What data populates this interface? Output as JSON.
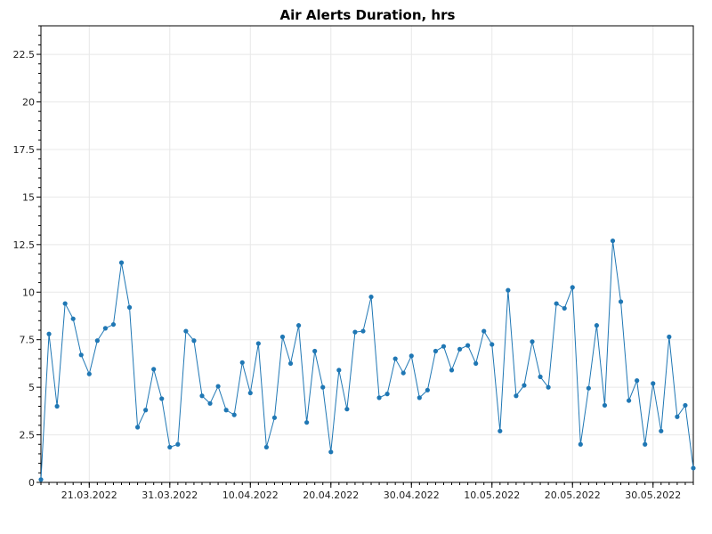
{
  "chart_data": {
    "type": "line",
    "title": "Air Alerts Duration, hrs",
    "xlabel": "",
    "ylabel": "",
    "x_start": "2022-03-15",
    "x_end": "2022-06-04",
    "ylim": [
      0,
      24
    ],
    "yticks": [
      "0",
      "2.5",
      "5",
      "7.5",
      "10",
      "12.5",
      "15",
      "17.5",
      "20",
      "22.5"
    ],
    "xticks": [
      {
        "date": "2022-03-21",
        "label": "21.03.2022"
      },
      {
        "date": "2022-03-31",
        "label": "31.03.2022"
      },
      {
        "date": "2022-04-10",
        "label": "10.04.2022"
      },
      {
        "date": "2022-04-20",
        "label": "20.04.2022"
      },
      {
        "date": "2022-04-30",
        "label": "30.04.2022"
      },
      {
        "date": "2022-05-10",
        "label": "10.05.2022"
      },
      {
        "date": "2022-05-20",
        "label": "20.05.2022"
      },
      {
        "date": "2022-05-30",
        "label": "30.05.2022"
      }
    ],
    "grid": true,
    "series": [
      {
        "color": "#1f77b4",
        "points": [
          [
            "2022-03-15",
            0.15
          ],
          [
            "2022-03-16",
            7.8
          ],
          [
            "2022-03-17",
            4.0
          ],
          [
            "2022-03-18",
            9.4
          ],
          [
            "2022-03-19",
            8.6
          ],
          [
            "2022-03-20",
            6.7
          ],
          [
            "2022-03-21",
            5.7
          ],
          [
            "2022-03-22",
            7.45
          ],
          [
            "2022-03-23",
            8.1
          ],
          [
            "2022-03-24",
            8.3
          ],
          [
            "2022-03-25",
            11.55
          ],
          [
            "2022-03-26",
            9.2
          ],
          [
            "2022-03-27",
            2.9
          ],
          [
            "2022-03-28",
            3.8
          ],
          [
            "2022-03-29",
            5.95
          ],
          [
            "2022-03-30",
            4.4
          ],
          [
            "2022-03-31",
            1.85
          ],
          [
            "2022-04-01",
            2.0
          ],
          [
            "2022-04-02",
            7.95
          ],
          [
            "2022-04-03",
            7.45
          ],
          [
            "2022-04-04",
            4.55
          ],
          [
            "2022-04-05",
            4.15
          ],
          [
            "2022-04-06",
            5.05
          ],
          [
            "2022-04-07",
            3.8
          ],
          [
            "2022-04-08",
            3.55
          ],
          [
            "2022-04-09",
            6.3
          ],
          [
            "2022-04-10",
            4.7
          ],
          [
            "2022-04-11",
            7.3
          ],
          [
            "2022-04-12",
            1.85
          ],
          [
            "2022-04-13",
            3.4
          ],
          [
            "2022-04-14",
            7.65
          ],
          [
            "2022-04-15",
            6.25
          ],
          [
            "2022-04-16",
            8.25
          ],
          [
            "2022-04-17",
            3.15
          ],
          [
            "2022-04-18",
            6.9
          ],
          [
            "2022-04-19",
            5.0
          ],
          [
            "2022-04-20",
            1.6
          ],
          [
            "2022-04-21",
            5.9
          ],
          [
            "2022-04-22",
            3.85
          ],
          [
            "2022-04-23",
            7.9
          ],
          [
            "2022-04-24",
            7.95
          ],
          [
            "2022-04-25",
            9.75
          ],
          [
            "2022-04-26",
            4.45
          ],
          [
            "2022-04-27",
            4.65
          ],
          [
            "2022-04-28",
            6.5
          ],
          [
            "2022-04-29",
            5.75
          ],
          [
            "2022-04-30",
            6.65
          ],
          [
            "2022-05-01",
            4.45
          ],
          [
            "2022-05-02",
            4.85
          ],
          [
            "2022-05-03",
            6.9
          ],
          [
            "2022-05-04",
            7.15
          ],
          [
            "2022-05-05",
            5.9
          ],
          [
            "2022-05-06",
            7.0
          ],
          [
            "2022-05-07",
            7.2
          ],
          [
            "2022-05-08",
            6.25
          ],
          [
            "2022-05-09",
            7.95
          ],
          [
            "2022-05-10",
            7.25
          ],
          [
            "2022-05-11",
            2.7
          ],
          [
            "2022-05-12",
            10.1
          ],
          [
            "2022-05-13",
            4.55
          ],
          [
            "2022-05-14",
            5.1
          ],
          [
            "2022-05-15",
            7.4
          ],
          [
            "2022-05-16",
            5.55
          ],
          [
            "2022-05-17",
            5.0
          ],
          [
            "2022-05-18",
            9.4
          ],
          [
            "2022-05-19",
            9.15
          ],
          [
            "2022-05-20",
            10.25
          ],
          [
            "2022-05-21",
            2.0
          ],
          [
            "2022-05-22",
            4.95
          ],
          [
            "2022-05-23",
            8.25
          ],
          [
            "2022-05-24",
            4.05
          ],
          [
            "2022-05-25",
            12.7
          ],
          [
            "2022-05-26",
            9.5
          ],
          [
            "2022-05-27",
            4.3
          ],
          [
            "2022-05-28",
            5.35
          ],
          [
            "2022-05-29",
            2.0
          ],
          [
            "2022-05-30",
            5.2
          ],
          [
            "2022-05-31",
            2.7
          ],
          [
            "2022-06-01",
            7.65
          ],
          [
            "2022-06-02",
            3.45
          ],
          [
            "2022-06-03",
            4.05
          ],
          [
            "2022-06-04",
            0.75
          ]
        ]
      }
    ]
  }
}
